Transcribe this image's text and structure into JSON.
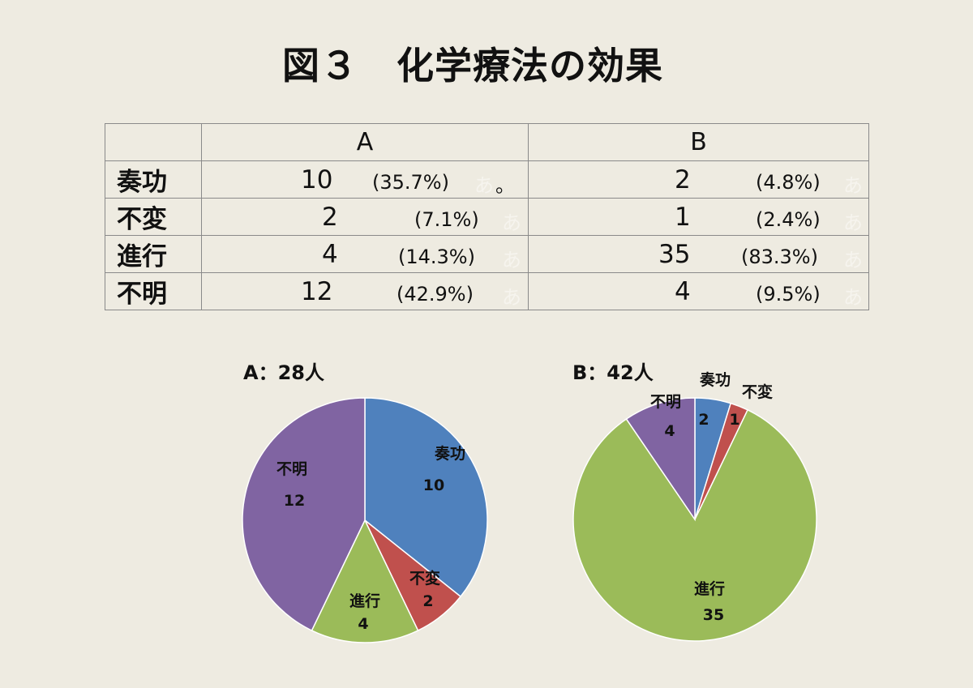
{
  "page": {
    "title": "図３　化学療法の効果"
  },
  "table": {
    "headers": [
      "",
      "A",
      "B"
    ],
    "rows": [
      {
        "label": "奏功",
        "a_count": "10",
        "a_pct": "(35.7%)",
        "b_count": "2",
        "b_pct": "(4.8%)"
      },
      {
        "label": "不変",
        "a_count": "2",
        "a_pct": "(7.1%)",
        "b_count": "1",
        "b_pct": "(2.4%)"
      },
      {
        "label": "進行",
        "a_count": "4",
        "a_pct": "(14.3%)",
        "b_count": "35",
        "b_pct": "(83.3%)"
      },
      {
        "label": "不明",
        "a_count": "12",
        "a_pct": "(42.9%)",
        "b_count": "4",
        "b_pct": "(9.5%)"
      }
    ],
    "ghost_glyph": "あ",
    "stray_mark": "。"
  },
  "colors": {
    "奏功": "#4f81bd",
    "不変": "#c0504d",
    "進行": "#9bbb59",
    "不明": "#8064a2"
  },
  "chart_data": [
    {
      "type": "pie",
      "title": "A：28人",
      "categories": [
        "奏功",
        "不変",
        "進行",
        "不明"
      ],
      "values": [
        10,
        2,
        4,
        12
      ],
      "start": "12 o'clock, clockwise"
    },
    {
      "type": "pie",
      "title": "B：42人",
      "categories": [
        "奏功",
        "不変",
        "進行",
        "不明"
      ],
      "values": [
        2,
        1,
        35,
        4
      ],
      "start": "12 o'clock, clockwise"
    }
  ]
}
